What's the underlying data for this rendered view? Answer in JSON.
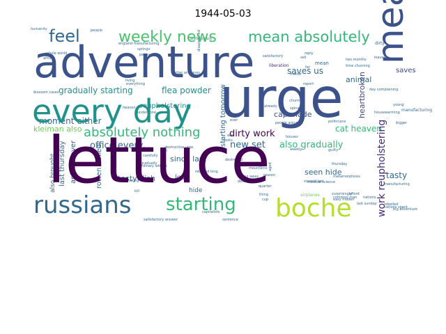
{
  "chart_data": {
    "type": "wordcloud",
    "title": "1944-05-03",
    "background": "#ffffff",
    "words": [
      {
        "text": "lettuce",
        "color": "#440154"
      },
      {
        "text": "adventure",
        "color": "#3b528b"
      },
      {
        "text": "urge",
        "color": "#3b528b"
      },
      {
        "text": "every day",
        "color": "#21918c"
      },
      {
        "text": "meal",
        "color": "#3b528b"
      },
      {
        "text": "russians",
        "color": "#31688e"
      },
      {
        "text": "boche",
        "color": "#b5de2b"
      },
      {
        "text": "starting",
        "color": "#35b779"
      },
      {
        "text": "weekly news",
        "color": "#4ac16d"
      },
      {
        "text": "mean absolutely",
        "color": "#35b779"
      },
      {
        "text": "feel",
        "color": "#31688e"
      },
      {
        "text": "absolutely nothing",
        "color": "#35b779"
      },
      {
        "text": "gradually starting",
        "color": "#21918c"
      },
      {
        "text": "flea powder",
        "color": "#21918c"
      },
      {
        "text": "moment either",
        "color": "#31688e"
      },
      {
        "text": "reupholstering",
        "color": "#21918c"
      },
      {
        "text": "dirty work",
        "color": "#440154"
      },
      {
        "text": "office every",
        "color": "#31688e"
      },
      {
        "text": "new set",
        "color": "#31688e"
      },
      {
        "text": "also gradually",
        "color": "#35b779"
      },
      {
        "text": "cat heaven",
        "color": "#35b779"
      },
      {
        "text": "kleiman also",
        "color": "#6ece58"
      },
      {
        "text": "cap made",
        "color": "#3b528b"
      },
      {
        "text": "animal",
        "color": "#31688e"
      },
      {
        "text": "saves",
        "color": "#3e4989"
      },
      {
        "text": "tasty",
        "color": "#31688e"
      },
      {
        "text": "heartbroken",
        "color": "#3e4989"
      },
      {
        "text": "work reupholstering",
        "color": "#482878"
      },
      {
        "text": "starting tomorrow",
        "color": "#31688e"
      },
      {
        "text": "saves us",
        "color": "#31688e"
      },
      {
        "text": "since last",
        "color": "#31688e"
      },
      {
        "text": "love",
        "color": "#31688e"
      },
      {
        "text": "hide",
        "color": "#31688e"
      },
      {
        "text": "seen hide",
        "color": "#31688e"
      },
      {
        "text": "tasty dish",
        "color": "#31688e"
      },
      {
        "text": "rotten boiled",
        "color": "#31688e"
      },
      {
        "text": "animal lover",
        "color": "#3b528b"
      },
      {
        "text": "last thursday",
        "color": "#31688e"
      },
      {
        "text": "also brought",
        "color": "#31688e"
      },
      {
        "text": "mean",
        "color": "#31688e"
      },
      {
        "text": "liberation",
        "color": "#482878"
      },
      {
        "text": "manufacturing",
        "color": "#31688e"
      },
      {
        "text": "better airplanes",
        "color": "#31688e"
      },
      {
        "text": "medical science",
        "color": "#31688e"
      },
      {
        "text": "airplanes",
        "color": "#6ece58"
      },
      {
        "text": "churning",
        "color": "#31688e"
      },
      {
        "text": "spinach",
        "color": "#31688e"
      },
      {
        "text": "people around",
        "color": "#31688e"
      },
      {
        "text": "ordinary lettuce",
        "color": "#31688e"
      },
      {
        "text": "rebelled long",
        "color": "#31688e"
      },
      {
        "text": "destructive urge",
        "color": "#31688e"
      },
      {
        "text": "rolling away",
        "color": "#31688e"
      },
      {
        "text": "destruction",
        "color": "#31688e"
      },
      {
        "text": "quarter",
        "color": "#31688e"
      },
      {
        "text": "reason",
        "color": "#31688e"
      },
      {
        "text": "dirty",
        "color": "#31688e"
      },
      {
        "text": "leaves",
        "color": "#31688e"
      },
      {
        "text": "report",
        "color": "#31688e"
      },
      {
        "text": "matter",
        "color": "#31688e"
      },
      {
        "text": "far",
        "color": "#31688e"
      },
      {
        "text": "bigger",
        "color": "#31688e"
      },
      {
        "text": "politicians",
        "color": "#31688e"
      },
      {
        "text": "started last",
        "color": "#31688e"
      },
      {
        "text": "metamorphosis",
        "color": "#31688e"
      },
      {
        "text": "thursday",
        "color": "#31688e"
      },
      {
        "text": "nations",
        "color": "#31688e"
      },
      {
        "text": "rebelled",
        "color": "#31688e"
      },
      {
        "text": "last sunday",
        "color": "#31688e"
      },
      {
        "text": "big adventure",
        "color": "#31688e"
      },
      {
        "text": "two months",
        "color": "#31688e"
      },
      {
        "text": "time churning",
        "color": "#31688e"
      },
      {
        "text": "day complaining",
        "color": "#31688e"
      },
      {
        "text": "young",
        "color": "#31688e"
      },
      {
        "text": "housewarming",
        "color": "#31688e"
      },
      {
        "text": "humanity",
        "color": "#31688e"
      },
      {
        "text": "carefully built",
        "color": "#31688e"
      },
      {
        "text": "england manufacturing",
        "color": "#31688e"
      },
      {
        "text": "springs",
        "color": "#31688e"
      },
      {
        "text": "penny",
        "color": "#31688e"
      },
      {
        "text": "disappeared",
        "color": "#31688e"
      },
      {
        "text": "artists",
        "color": "#31688e"
      },
      {
        "text": "whole world",
        "color": "#31688e"
      },
      {
        "text": "living",
        "color": "#31688e"
      },
      {
        "text": "undergone",
        "color": "#31688e"
      },
      {
        "text": "blossom cases",
        "color": "#31688e"
      },
      {
        "text": "everything",
        "color": "#31688e"
      },
      {
        "text": "heaven",
        "color": "#31688e"
      },
      {
        "text": "dish",
        "color": "#31688e"
      },
      {
        "text": "boiled",
        "color": "#31688e"
      },
      {
        "text": "books",
        "color": "#31688e"
      },
      {
        "text": "gradually",
        "color": "#31688e"
      },
      {
        "text": "destroyed",
        "color": "#31688e"
      },
      {
        "text": "mountains",
        "color": "#31688e"
      },
      {
        "text": "rotting",
        "color": "#31688e"
      },
      {
        "text": "kill",
        "color": "#31688e"
      },
      {
        "text": "making death",
        "color": "#31688e"
      },
      {
        "text": "carefully",
        "color": "#31688e"
      },
      {
        "text": "capitalists",
        "color": "#31688e"
      },
      {
        "text": "satisfactory answer",
        "color": "#31688e"
      },
      {
        "text": "sentence",
        "color": "#31688e"
      },
      {
        "text": "cup",
        "color": "#31688e"
      },
      {
        "text": "weekly",
        "color": "#31688e"
      },
      {
        "text": "guilty",
        "color": "#31688e"
      },
      {
        "text": "afford",
        "color": "#31688e"
      },
      {
        "text": "manufacturing",
        "color": "#31688e"
      },
      {
        "text": "satisfactory",
        "color": "#31688e"
      },
      {
        "text": "people",
        "color": "#31688e"
      },
      {
        "text": "surprisingly",
        "color": "#31688e"
      },
      {
        "text": "easy hidden",
        "color": "#31688e"
      },
      {
        "text": "nations spent",
        "color": "#31688e"
      },
      {
        "text": "aged",
        "color": "#31688e"
      },
      {
        "text": "houses",
        "color": "#31688e"
      },
      {
        "text": "ever",
        "color": "#31688e"
      },
      {
        "text": "reply",
        "color": "#31688e"
      },
      {
        "text": "sell",
        "color": "#31688e"
      },
      {
        "text": "war",
        "color": "#31688e"
      },
      {
        "text": "already",
        "color": "#31688e"
      },
      {
        "text": "common man",
        "color": "#31688e"
      },
      {
        "text": "thing",
        "color": "#31688e"
      }
    ]
  }
}
